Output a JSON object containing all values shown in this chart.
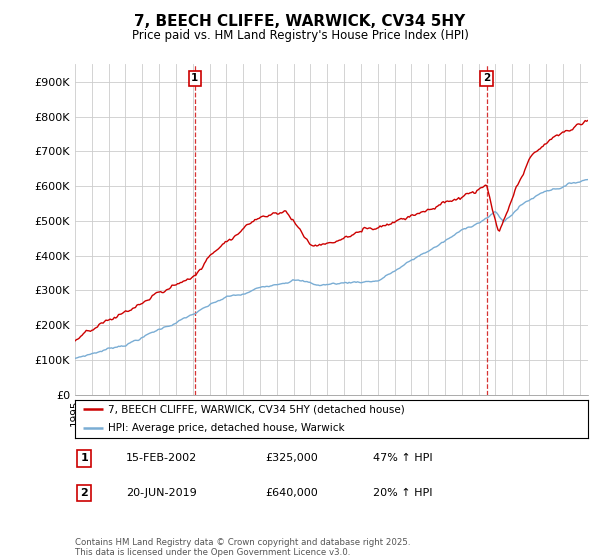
{
  "title": "7, BEECH CLIFFE, WARWICK, CV34 5HY",
  "subtitle": "Price paid vs. HM Land Registry's House Price Index (HPI)",
  "ylim": [
    0,
    950000
  ],
  "yticks": [
    0,
    100000,
    200000,
    300000,
    400000,
    500000,
    600000,
    700000,
    800000,
    900000
  ],
  "ytick_labels": [
    "£0",
    "£100K",
    "£200K",
    "£300K",
    "£400K",
    "£500K",
    "£600K",
    "£700K",
    "£800K",
    "£900K"
  ],
  "xlim_start": 1995.0,
  "xlim_end": 2025.5,
  "property_color": "#cc0000",
  "hpi_color": "#7aadd4",
  "marker1_date": 2002.12,
  "marker2_date": 2019.47,
  "legend_property": "7, BEECH CLIFFE, WARWICK, CV34 5HY (detached house)",
  "legend_hpi": "HPI: Average price, detached house, Warwick",
  "table_entries": [
    {
      "num": "1",
      "date": "15-FEB-2002",
      "price": "£325,000",
      "change": "47% ↑ HPI"
    },
    {
      "num": "2",
      "date": "20-JUN-2019",
      "price": "£640,000",
      "change": "20% ↑ HPI"
    }
  ],
  "footnote": "Contains HM Land Registry data © Crown copyright and database right 2025.\nThis data is licensed under the Open Government Licence v3.0.",
  "background_color": "#ffffff",
  "grid_color": "#cccccc"
}
